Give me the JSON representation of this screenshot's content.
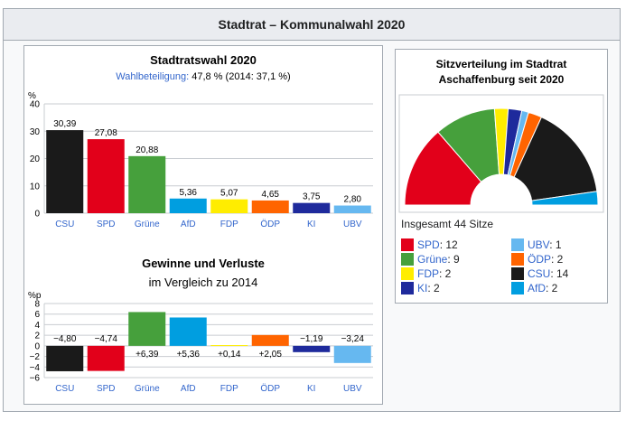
{
  "header": {
    "title": "Stadtrat – Kommunalwahl 2020"
  },
  "colors": {
    "CSU": "#1a1a1a",
    "SPD": "#e2001a",
    "Grüne": "#46a03c",
    "AfD": "#009ee0",
    "FDP": "#ffed00",
    "ÖDP": "#ff6400",
    "KI": "#1e2a9c",
    "UBV": "#66b8f0"
  },
  "chart_data": [
    {
      "type": "bar",
      "title": "Stadtratswahl 2020",
      "subtitle_link": "Wahlbeteiligung:",
      "subtitle_rest": " 47,8 % (2014: 37,1 %)",
      "ylabel": "%",
      "ylim": [
        0,
        40
      ],
      "yticks": [
        "40",
        "30",
        "20",
        "10",
        "0"
      ],
      "categories": [
        "CSU",
        "SPD",
        "Grüne",
        "AfD",
        "FDP",
        "ÖDP",
        "KI",
        "UBV"
      ],
      "values": [
        30.39,
        27.08,
        20.88,
        5.36,
        5.07,
        4.65,
        3.75,
        2.8
      ],
      "labels": [
        "30,39",
        "27,08",
        "20,88",
        "5,36",
        "5,07",
        "4,65",
        "3,75",
        "2,80"
      ]
    },
    {
      "type": "bar",
      "title": "Gewinne und Verluste",
      "subtitle": "im Vergleich zu 2014",
      "ylabel": "%p",
      "ylim": [
        -6,
        8
      ],
      "yticks": [
        "8",
        "6",
        "4",
        "2",
        "0",
        "−2",
        "−4",
        "−6"
      ],
      "categories": [
        "CSU",
        "SPD",
        "Grüne",
        "AfD",
        "FDP",
        "ÖDP",
        "KI",
        "UBV"
      ],
      "values": [
        -4.8,
        -4.74,
        6.39,
        5.36,
        0.14,
        2.05,
        -1.19,
        -3.24
      ],
      "labels": [
        "−4,80",
        "−4,74",
        "+6,39",
        "+5,36",
        "+0,14",
        "+2,05",
        "−1,19",
        "−3,24"
      ]
    },
    {
      "type": "pie",
      "title_line1": "Sitzverteilung im Stadtrat",
      "title_line2": "Aschaffenburg seit 2020",
      "order": [
        "SPD",
        "Grüne",
        "FDP",
        "KI",
        "UBV",
        "ÖDP",
        "CSU",
        "AfD"
      ],
      "seats": [
        12,
        9,
        2,
        2,
        1,
        2,
        14,
        2
      ],
      "total_label": "Insgesamt 44 Sitze",
      "legend": [
        {
          "party": "SPD",
          "seats": ": 12"
        },
        {
          "party": "UBV",
          "seats": ": 1"
        },
        {
          "party": "Grüne",
          "seats": ": 9"
        },
        {
          "party": "ÖDP",
          "seats": ": 2"
        },
        {
          "party": "FDP",
          "seats": ": 2"
        },
        {
          "party": "CSU",
          "seats": ": 14"
        },
        {
          "party": "KI",
          "seats": ": 2"
        },
        {
          "party": "AfD",
          "seats": ": 2"
        }
      ]
    }
  ]
}
